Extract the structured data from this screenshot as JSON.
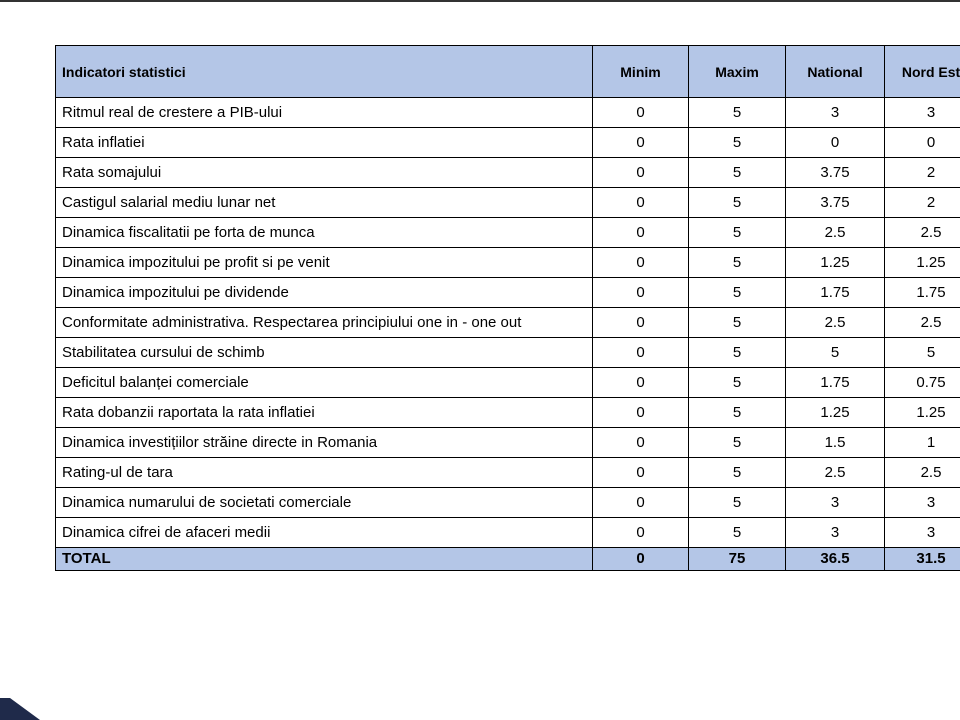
{
  "table": {
    "header": [
      "Indicatori statistici",
      "Minim",
      "Maxim",
      "National",
      "Nord Est"
    ],
    "rows": [
      [
        "Ritmul real de crestere a PIB-ului",
        0,
        5,
        3,
        3
      ],
      [
        "Rata inflatiei",
        0,
        5,
        0,
        0
      ],
      [
        "Rata somajului",
        0,
        5,
        3.75,
        2
      ],
      [
        "Castigul salarial mediu lunar net",
        0,
        5,
        3.75,
        2
      ],
      [
        "Dinamica fiscalitatii pe forta de munca",
        0,
        5,
        2.5,
        2.5
      ],
      [
        "Dinamica impozitului pe profit si pe venit",
        0,
        5,
        1.25,
        1.25
      ],
      [
        "Dinamica impozitului pe dividende",
        0,
        5,
        1.75,
        1.75
      ],
      [
        "Conformitate administrativa. Respectarea principiului one in - one out",
        0,
        5,
        2.5,
        2.5
      ],
      [
        "Stabilitatea cursului de schimb",
        0,
        5,
        5,
        5
      ],
      [
        "Deficitul balanței comerciale",
        0,
        5,
        1.75,
        0.75
      ],
      [
        "Rata dobanzii raportata la rata inflatiei",
        0,
        5,
        1.25,
        1.25
      ],
      [
        "Dinamica investițiilor străine directe in Romania",
        0,
        5,
        1.5,
        1
      ],
      [
        "Rating-ul de tara",
        0,
        5,
        2.5,
        2.5
      ],
      [
        "Dinamica numarului de societati comerciale",
        0,
        5,
        3,
        3
      ],
      [
        "Dinamica cifrei de afaceri medii",
        0,
        5,
        3,
        3
      ]
    ],
    "total": [
      "TOTAL",
      0,
      75,
      36.5,
      31.5
    ]
  }
}
